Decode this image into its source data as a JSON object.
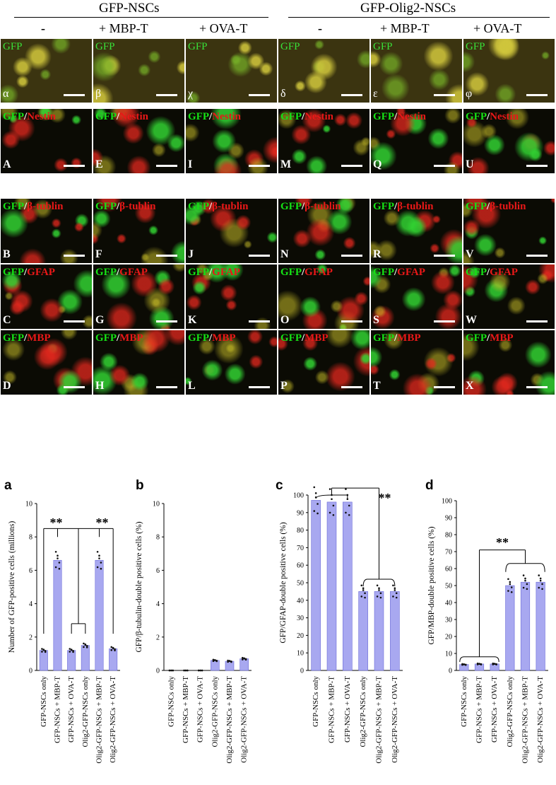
{
  "header": {
    "groups": [
      {
        "title": "GFP-NSCs",
        "conditions": [
          "-",
          "+ MBP-T",
          "+ OVA-T"
        ]
      },
      {
        "title": "GFP-Olig2-NSCs",
        "conditions": [
          "-",
          "+ MBP-T",
          "+ OVA-T"
        ]
      }
    ]
  },
  "micrographs": {
    "overview_row": {
      "label": "GFP",
      "panels": [
        "α",
        "β",
        "χ",
        "δ",
        "ε",
        "φ"
      ]
    },
    "marker_rows": [
      {
        "prefix": "GFP",
        "marker": "Nestin",
        "panels": [
          "A",
          "E",
          "I",
          "M",
          "Q",
          "U"
        ]
      },
      {
        "prefix": "GFP",
        "marker": "β-tublin",
        "panels": [
          "B",
          "F",
          "J",
          "N",
          "R",
          "V"
        ]
      },
      {
        "prefix": "GFP",
        "marker": "GFAP",
        "panels": [
          "C",
          "G",
          "K",
          "O",
          "S",
          "W"
        ]
      },
      {
        "prefix": "GFP",
        "marker": "MBP",
        "panels": [
          "D",
          "H",
          "L",
          "P",
          "T",
          "X"
        ]
      }
    ],
    "colors": {
      "green": "#2cd62c",
      "red": "#d81c1c",
      "yellow": "#d8c838"
    }
  },
  "chart_data": [
    {
      "panel": "a",
      "type": "bar",
      "ylabel": "Number of GFP-positive cells (millions)",
      "ylim": [
        0,
        10
      ],
      "yticks": [
        0,
        2,
        4,
        6,
        8,
        10
      ],
      "categories": [
        "GFP-NSCs only",
        "GFP-NSCs + MBP-T",
        "GFP-NSCs + OVA-T",
        "Olig2-GFP-NSCs only",
        "Olig2-GFP-NSCs + MBP-T",
        "Olig2-GFP-NSCs + OVA-T"
      ],
      "values": [
        1.2,
        6.6,
        1.2,
        1.5,
        6.6,
        1.3
      ],
      "significance": [
        "**",
        "**"
      ],
      "bar_color": "#a8a8f0"
    },
    {
      "panel": "b",
      "type": "bar",
      "ylabel": "GFP/β-tubulin-double positive cells (%)",
      "ylim": [
        0,
        10
      ],
      "yticks": [
        0,
        2,
        4,
        6,
        8,
        10
      ],
      "categories": [
        "GFP-NSCs only",
        "GFP-NSCs + MBP-T",
        "GFP-NSCs + OVA-T",
        "Olig2-GFP-NSCs only",
        "Olig2-GFP-NSCs + MBP-T",
        "Olig2-GFP-NSCs + OVA-T"
      ],
      "values": [
        0,
        0,
        0,
        0.6,
        0.55,
        0.7
      ],
      "significance": [],
      "bar_color": "#a8a8f0"
    },
    {
      "panel": "c",
      "type": "bar",
      "ylabel": "GFP/GFAP-double positive cells (%)",
      "ylim": [
        0,
        100
      ],
      "yticks": [
        0,
        10,
        20,
        30,
        40,
        50,
        60,
        70,
        80,
        90,
        100
      ],
      "categories": [
        "GFP-NSCs only",
        "GFP-NSCs + MBP-T",
        "GFP-NSCs + OVA-T",
        "Olig2-GFP-NSCs only",
        "Olig2-GFP-NSCs + MBP-T",
        "Olig2-GFP-NSCs + OVA-T"
      ],
      "values": [
        97,
        96,
        96,
        45,
        45,
        45
      ],
      "significance": [
        "**"
      ],
      "bar_color": "#a8a8f0"
    },
    {
      "panel": "d",
      "type": "bar",
      "ylabel": "GFP/MBP-double positive cells (%)",
      "ylim": [
        0,
        100
      ],
      "yticks": [
        0,
        10,
        20,
        30,
        40,
        50,
        60,
        70,
        80,
        90,
        100
      ],
      "categories": [
        "GFP-NSCs only",
        "GFP-NSCs + MBP-T",
        "GFP-NSCs + OVA-T",
        "Olig2-GFP-NSCs only",
        "Olig2-GFP-NSCs + MBP-T",
        "Olig2-GFP-NSCs + OVA-T"
      ],
      "values": [
        3.5,
        3.8,
        3.8,
        50,
        52,
        52
      ],
      "significance": [
        "**"
      ],
      "bar_color": "#a8a8f0"
    }
  ]
}
